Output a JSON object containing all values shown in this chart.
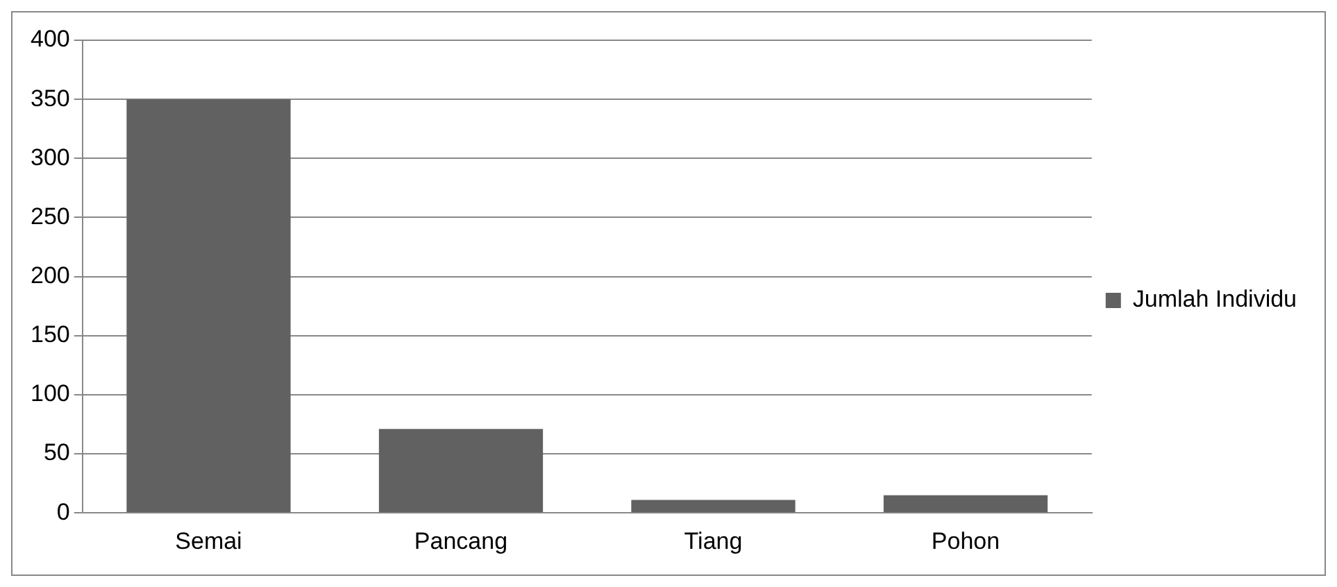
{
  "chart_data": {
    "type": "bar",
    "categories": [
      "Semai",
      "Pancang",
      "Tiang",
      "Pohon"
    ],
    "series": [
      {
        "name": "Jumlah Individu",
        "color": "#616161",
        "values": [
          350,
          71,
          11,
          15
        ]
      }
    ],
    "ylim": [
      0,
      400
    ],
    "yticks": [
      0,
      50,
      100,
      150,
      200,
      250,
      300,
      350,
      400
    ],
    "grid": "y",
    "legend": "right"
  }
}
